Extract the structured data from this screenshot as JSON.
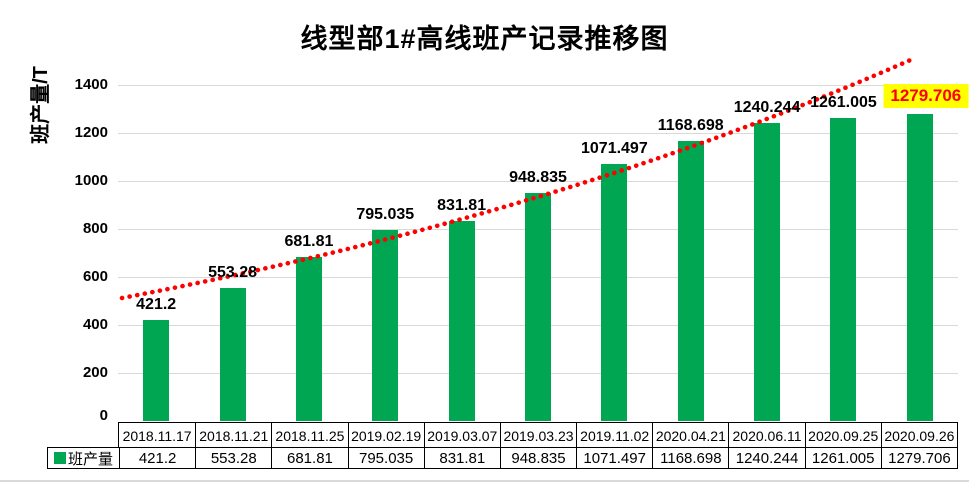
{
  "chart_data": {
    "type": "bar",
    "title": "线型部1#高线班产记录推移图",
    "ylabel": "班产量/T",
    "xlabel": "",
    "ylim": [
      0,
      1400
    ],
    "ytick_step": 200,
    "grid": true,
    "legend_position": "table-row-left",
    "series_name": "班产量",
    "categories": [
      "2018.11.17",
      "2018.11.21",
      "2018.11.25",
      "2019.02.19",
      "2019.03.07",
      "2019.03.23",
      "2019.11.02",
      "2020.04.21",
      "2020.06.11",
      "2020.09.25",
      "2020.09.26"
    ],
    "values": [
      421.2,
      553.28,
      681.81,
      795.035,
      831.81,
      948.835,
      1071.497,
      1168.698,
      1240.244,
      1261.005,
      1279.706
    ],
    "value_labels": [
      "421.2",
      "553.28",
      "681.81",
      "795.035",
      "831.81",
      "948.835",
      "1071.497",
      "1168.698",
      "1240.244",
      "1261.005",
      "1279.706"
    ],
    "bar_color": "#00A651",
    "label_color": "#000000",
    "highlight_last_label": true,
    "highlight_bg": "#FFFF00",
    "highlight_text_color": "#FF0000",
    "trendline": {
      "style": "dotted",
      "color": "#FF0000"
    },
    "gridline_color": "#D9D9D9",
    "table_border_color": "#000000"
  }
}
